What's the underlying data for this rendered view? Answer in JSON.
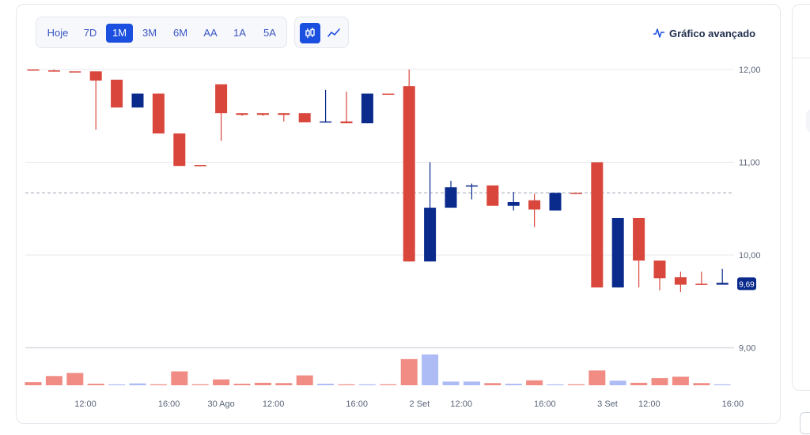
{
  "toolbar": {
    "ranges": [
      "Hoje",
      "7D",
      "1M",
      "3M",
      "6M",
      "AA",
      "1A",
      "5A"
    ],
    "active_range": "1M",
    "chart_types": [
      "candlestick-icon",
      "line-chart-icon"
    ],
    "active_chart_type": "candlestick-icon",
    "advanced_label": "Gráfico avançado"
  },
  "colors": {
    "up": "#0a2a8c",
    "down": "#d9473c",
    "volume_up": "#aebcf5",
    "volume_down": "#f08c84",
    "accent": "#1a4fe0",
    "last_price_badge": "#0a2a8c"
  },
  "chart_data": {
    "type": "candlestick",
    "y_ticks": [
      "12,00",
      "11,00",
      "10,00",
      "9,00"
    ],
    "y_tick_values": [
      12,
      11,
      10,
      9
    ],
    "ylim": [
      8.58,
      12.0
    ],
    "x_ticks": [
      {
        "label": "12:00",
        "at": 2.5
      },
      {
        "label": "16:00",
        "at": 6.5
      },
      {
        "label": "30 Ago",
        "at": 9.0
      },
      {
        "label": "12:00",
        "at": 11.5
      },
      {
        "label": "16:00",
        "at": 15.5
      },
      {
        "label": "2 Set",
        "at": 18.5
      },
      {
        "label": "12:00",
        "at": 20.5
      },
      {
        "label": "16:00",
        "at": 24.5
      },
      {
        "label": "3 Set",
        "at": 27.5
      },
      {
        "label": "12:00",
        "at": 29.5
      },
      {
        "label": "16:00",
        "at": 33.5
      }
    ],
    "reference_price": 10.67,
    "last_price": 9.69,
    "last_price_label": "9,69",
    "candles": [
      {
        "o": 12.0,
        "h": 12.0,
        "l": 11.99,
        "c": 11.99
      },
      {
        "o": 11.99,
        "h": 12.0,
        "l": 11.98,
        "c": 11.98
      },
      {
        "o": 11.98,
        "h": 11.98,
        "l": 11.97,
        "c": 11.97
      },
      {
        "o": 11.98,
        "h": 11.98,
        "l": 11.35,
        "c": 11.88
      },
      {
        "o": 11.89,
        "h": 11.89,
        "l": 11.59,
        "c": 11.59
      },
      {
        "o": 11.59,
        "h": 11.74,
        "l": 11.59,
        "c": 11.74
      },
      {
        "o": 11.74,
        "h": 11.74,
        "l": 11.31,
        "c": 11.31
      },
      {
        "o": 11.31,
        "h": 11.31,
        "l": 10.96,
        "c": 10.96
      },
      {
        "o": 10.97,
        "h": 10.97,
        "l": 10.96,
        "c": 10.96
      },
      {
        "o": 11.84,
        "h": 11.84,
        "l": 11.23,
        "c": 11.53
      },
      {
        "o": 11.53,
        "h": 11.53,
        "l": 11.5,
        "c": 11.51
      },
      {
        "o": 11.53,
        "h": 11.53,
        "l": 11.5,
        "c": 11.51
      },
      {
        "o": 11.53,
        "h": 11.53,
        "l": 11.44,
        "c": 11.51
      },
      {
        "o": 11.53,
        "h": 11.53,
        "l": 11.44,
        "c": 11.43
      },
      {
        "o": 11.43,
        "h": 11.78,
        "l": 11.43,
        "c": 11.44
      },
      {
        "o": 11.44,
        "h": 11.76,
        "l": 11.42,
        "c": 11.42
      },
      {
        "o": 11.42,
        "h": 11.74,
        "l": 11.42,
        "c": 11.74
      },
      {
        "o": 11.74,
        "h": 11.74,
        "l": 11.73,
        "c": 11.73
      },
      {
        "o": 11.82,
        "h": 12.0,
        "l": 9.93,
        "c": 9.93
      },
      {
        "o": 9.93,
        "h": 11.0,
        "l": 9.93,
        "c": 10.51
      },
      {
        "o": 10.51,
        "h": 10.8,
        "l": 10.51,
        "c": 10.73
      },
      {
        "o": 10.74,
        "h": 10.77,
        "l": 10.6,
        "c": 10.75
      },
      {
        "o": 10.75,
        "h": 10.75,
        "l": 10.53,
        "c": 10.53
      },
      {
        "o": 10.53,
        "h": 10.68,
        "l": 10.48,
        "c": 10.57
      },
      {
        "o": 10.59,
        "h": 10.66,
        "l": 10.3,
        "c": 10.49
      },
      {
        "o": 10.48,
        "h": 10.67,
        "l": 10.48,
        "c": 10.67
      },
      {
        "o": 10.67,
        "h": 10.67,
        "l": 10.66,
        "c": 10.66
      },
      {
        "o": 11.0,
        "h": 11.0,
        "l": 9.65,
        "c": 9.65
      },
      {
        "o": 9.65,
        "h": 10.4,
        "l": 9.65,
        "c": 10.4
      },
      {
        "o": 10.4,
        "h": 10.4,
        "l": 9.65,
        "c": 9.94
      },
      {
        "o": 9.94,
        "h": 9.94,
        "l": 9.62,
        "c": 9.75
      },
      {
        "o": 9.76,
        "h": 9.82,
        "l": 9.6,
        "c": 9.68
      },
      {
        "o": 9.69,
        "h": 9.82,
        "l": 9.68,
        "c": 9.68
      },
      {
        "o": 9.68,
        "h": 9.85,
        "l": 9.68,
        "c": 9.7
      }
    ],
    "volumes": [
      {
        "v": 0.1,
        "dir": "down"
      },
      {
        "v": 0.3,
        "dir": "down"
      },
      {
        "v": 0.4,
        "dir": "down"
      },
      {
        "v": 0.05,
        "dir": "down"
      },
      {
        "v": 0.03,
        "dir": "up"
      },
      {
        "v": 0.06,
        "dir": "up"
      },
      {
        "v": 0.02,
        "dir": "down"
      },
      {
        "v": 0.45,
        "dir": "down"
      },
      {
        "v": 0.02,
        "dir": "down"
      },
      {
        "v": 0.19,
        "dir": "down"
      },
      {
        "v": 0.05,
        "dir": "down"
      },
      {
        "v": 0.08,
        "dir": "down"
      },
      {
        "v": 0.07,
        "dir": "down"
      },
      {
        "v": 0.32,
        "dir": "down"
      },
      {
        "v": 0.05,
        "dir": "up"
      },
      {
        "v": 0.03,
        "dir": "down"
      },
      {
        "v": 0.02,
        "dir": "up"
      },
      {
        "v": 0.02,
        "dir": "down"
      },
      {
        "v": 0.85,
        "dir": "down"
      },
      {
        "v": 1.0,
        "dir": "up"
      },
      {
        "v": 0.12,
        "dir": "up"
      },
      {
        "v": 0.12,
        "dir": "up"
      },
      {
        "v": 0.07,
        "dir": "down"
      },
      {
        "v": 0.05,
        "dir": "up"
      },
      {
        "v": 0.16,
        "dir": "down"
      },
      {
        "v": 0.02,
        "dir": "up"
      },
      {
        "v": 0.02,
        "dir": "down"
      },
      {
        "v": 0.48,
        "dir": "down"
      },
      {
        "v": 0.15,
        "dir": "up"
      },
      {
        "v": 0.08,
        "dir": "down"
      },
      {
        "v": 0.23,
        "dir": "down"
      },
      {
        "v": 0.28,
        "dir": "down"
      },
      {
        "v": 0.07,
        "dir": "down"
      },
      {
        "v": 0.02,
        "dir": "up"
      }
    ]
  }
}
